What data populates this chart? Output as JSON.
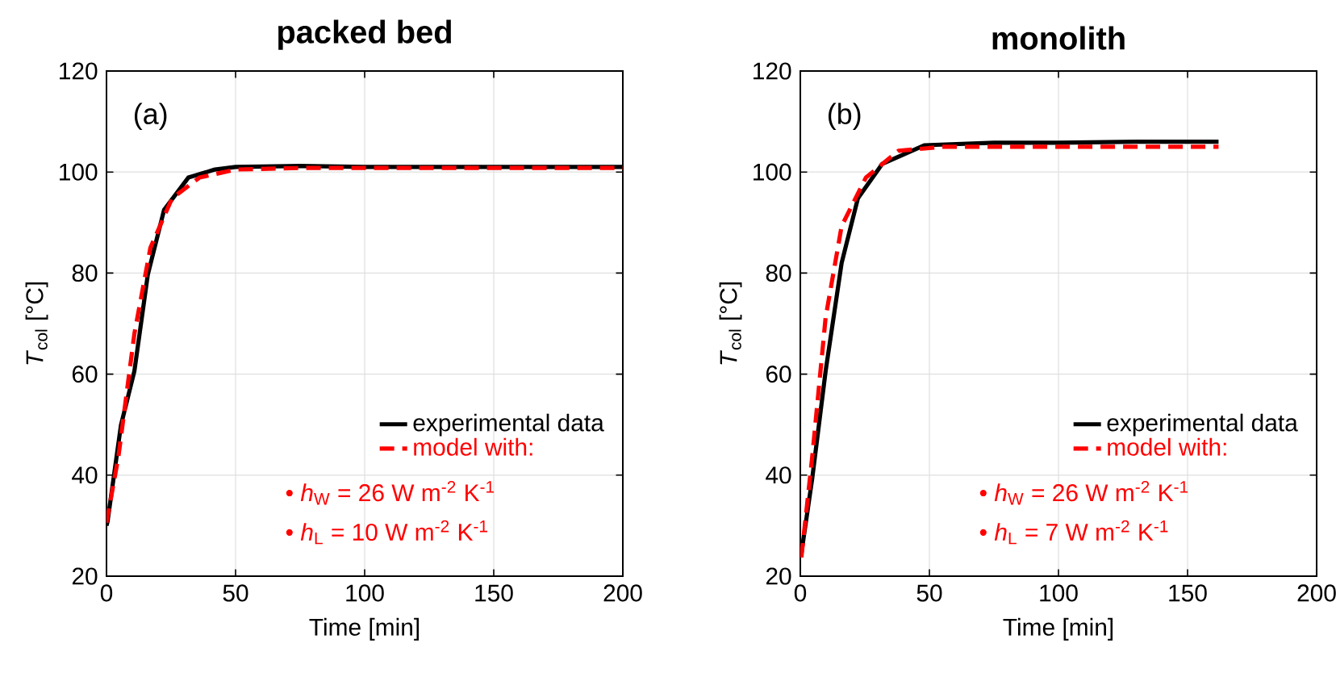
{
  "chart_data": [
    {
      "type": "line",
      "title": "packed bed",
      "xlabel": "Time [min]",
      "ylabel": "*T*$_{col}$ [°C]",
      "xlim": [
        0,
        200
      ],
      "ylim": [
        20,
        120
      ],
      "xticks": [
        0,
        50,
        100,
        150,
        200
      ],
      "yticks": [
        20,
        40,
        60,
        80,
        100,
        120
      ],
      "grid": true,
      "legend": "bottom right",
      "annotations": [
        "(a)",
        "• *h*$_{W}$ = 26 W m$^{-2}$ K$^{-1}$",
        "• *h*$_{L}$ = 10 W m$^{-2}$ K$^{-1}$"
      ],
      "series": [
        {
          "name": "experimental data",
          "color": "#000000",
          "line_style": "solid",
          "x": [
            0,
            0.4,
            5.6,
            10.8,
            16,
            22.3,
            31.7,
            42,
            50,
            75,
            100,
            125,
            150,
            175,
            200
          ],
          "values": [
            30,
            30.8,
            49.9,
            60.6,
            79.7,
            92.5,
            98.9,
            100.5,
            101,
            101.2,
            101,
            101,
            101,
            101,
            101
          ]
        },
        {
          "name": "model with:",
          "color": "#ff0000",
          "line_style": "dashed",
          "x": [
            0,
            4.6,
            10.8,
            17,
            25.4,
            36,
            50,
            75,
            100,
            125,
            150,
            175,
            200
          ],
          "values": [
            30.6,
            43.6,
            68,
            85,
            94.8,
            98.9,
            100.5,
            100.8,
            100.8,
            100.8,
            100.8,
            100.8,
            100.8
          ]
        }
      ]
    },
    {
      "type": "line",
      "title": "monolith",
      "xlabel": "Time [min]",
      "ylabel": "*T*$_{col}$ [°C]",
      "xlim": [
        0,
        200
      ],
      "ylim": [
        20,
        120
      ],
      "xticks": [
        0,
        50,
        100,
        150,
        200
      ],
      "yticks": [
        20,
        40,
        60,
        80,
        100,
        120
      ],
      "grid": true,
      "legend": "bottom right",
      "annotations": [
        "(b)",
        "• *h*$_{W}$ = 26 W m$^{-2}$ K$^{-1}$",
        "• *h*$_{L}$ = 7 W m$^{-2}$ K$^{-1}$"
      ],
      "series": [
        {
          "name": "experimental data",
          "color": "#000000",
          "line_style": "solid",
          "x": [
            0.4,
            4.6,
            9.8,
            16,
            22.3,
            31.7,
            48,
            75,
            100,
            130,
            162
          ],
          "values": [
            24.5,
            39.3,
            60.6,
            82,
            94.8,
            101.6,
            105.3,
            105.8,
            105.8,
            106,
            106
          ]
        },
        {
          "name": "model with:",
          "color": "#ff0000",
          "line_style": "dashed",
          "x": [
            0.4,
            4.6,
            9.8,
            16,
            25.4,
            38,
            55,
            80,
            110,
            140,
            162
          ],
          "values": [
            23.7,
            43.6,
            71.2,
            89.3,
            98.9,
            104.2,
            105,
            105,
            105,
            105,
            105
          ]
        }
      ]
    }
  ]
}
